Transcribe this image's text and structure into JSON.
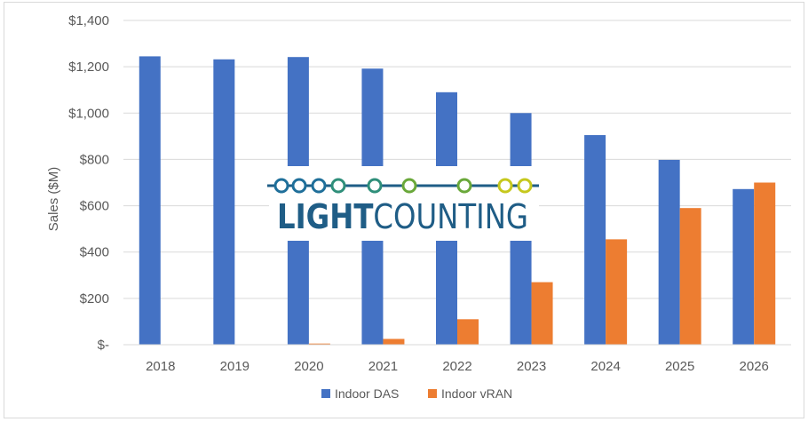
{
  "chart_data": {
    "type": "bar",
    "title": "",
    "xlabel": "",
    "ylabel": "Sales ($M)",
    "ylim": [
      0,
      1400
    ],
    "yticks": [
      0,
      200,
      400,
      600,
      800,
      1000,
      1200,
      1400
    ],
    "ytick_labels": [
      "$-",
      "$200",
      "$400",
      "$600",
      "$800",
      "$1,000",
      "$1,200",
      "$1,400"
    ],
    "grid": true,
    "legend_position": "bottom",
    "categories": [
      "2018",
      "2019",
      "2020",
      "2021",
      "2022",
      "2023",
      "2024",
      "2025",
      "2026"
    ],
    "series": [
      {
        "name": "Indoor DAS",
        "color": "#4472c4",
        "values": [
          1245,
          1232,
          1242,
          1192,
          1090,
          1000,
          905,
          798,
          672
        ]
      },
      {
        "name": "Indoor vRAN",
        "color": "#ed7d31",
        "values": [
          0,
          0,
          5,
          25,
          110,
          270,
          455,
          590,
          700
        ]
      }
    ]
  },
  "watermark": {
    "text_bold": "LIGHT",
    "text_regular": "COUNTING",
    "line_color": "#1f5d86",
    "accent_colors": [
      "#1f6f9a",
      "#2f8f7a",
      "#6aa83a",
      "#c6c81d"
    ]
  }
}
